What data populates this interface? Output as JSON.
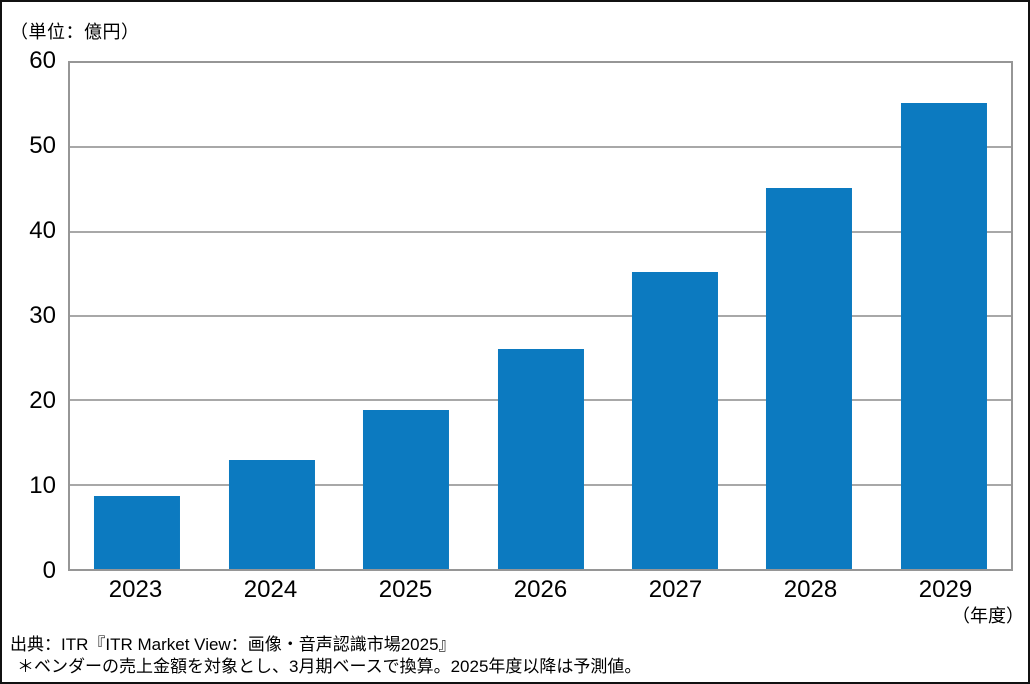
{
  "unit_label": "（単位：億円）",
  "x_axis_note": "（年度）",
  "source": {
    "line1": "出典：ITR『ITR Market View：画像・音声認識市場2025』",
    "line2": "＊ベンダーの売上金額を対象とし、3月期ベースで換算。2025年度以降は予測値。"
  },
  "chart_data": {
    "type": "bar",
    "title": "",
    "categories": [
      "2023",
      "2024",
      "2025",
      "2026",
      "2027",
      "2028",
      "2029"
    ],
    "values": [
      8.7,
      12.9,
      18.8,
      26.1,
      35.2,
      45.2,
      55.2
    ],
    "xlabel": "年度",
    "ylabel": "億円",
    "ylim": [
      0,
      60
    ],
    "yticks": [
      0,
      10,
      20,
      30,
      40,
      50,
      60
    ],
    "grid": true,
    "legend_position": "none",
    "bar_color": "#0c7ac0",
    "gridline_color": "#a8a8a8",
    "plot_border_color": "#969696",
    "bar_width_fraction": 0.64
  }
}
